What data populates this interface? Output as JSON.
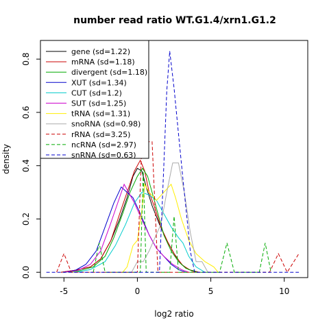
{
  "chart_data": {
    "type": "line",
    "title": "number read ratio WT.G1.4/xrn1.G1.2",
    "xlabel": "log2 ratio",
    "ylabel": "density",
    "xlim": [
      -6.6,
      11.6
    ],
    "ylim": [
      -0.02,
      0.87
    ],
    "xticks": [
      -5,
      0,
      5,
      10
    ],
    "xtick_labels": [
      "-5",
      "0",
      "5",
      "10"
    ],
    "yticks": [
      0.0,
      0.2,
      0.4,
      0.6,
      0.8
    ],
    "ytick_labels": [
      "0.0",
      "0.2",
      "0.4",
      "0.6",
      "0.8"
    ],
    "grid": false,
    "legend_position": "top-left",
    "series": [
      {
        "name": "gene (sd=1.22)",
        "color": "#000000",
        "dash": "solid",
        "points": [
          [
            -5.2,
            0.0
          ],
          [
            -4.2,
            0.008
          ],
          [
            -3.2,
            0.02
          ],
          [
            -2.5,
            0.05
          ],
          [
            -1.8,
            0.12
          ],
          [
            -1.2,
            0.2
          ],
          [
            -0.7,
            0.28
          ],
          [
            -0.3,
            0.36
          ],
          [
            0.0,
            0.39
          ],
          [
            0.3,
            0.38
          ],
          [
            0.6,
            0.32
          ],
          [
            1.0,
            0.25
          ],
          [
            1.5,
            0.18
          ],
          [
            2.0,
            0.12
          ],
          [
            2.5,
            0.07
          ],
          [
            3.0,
            0.03
          ],
          [
            3.5,
            0.01
          ],
          [
            4.2,
            0.0
          ]
        ]
      },
      {
        "name": "mRNA (sd=1.18)",
        "color": "#cc0000",
        "dash": "solid",
        "points": [
          [
            -5.2,
            0.0
          ],
          [
            -4.2,
            0.008
          ],
          [
            -3.2,
            0.02
          ],
          [
            -2.5,
            0.05
          ],
          [
            -1.8,
            0.12
          ],
          [
            -1.2,
            0.22
          ],
          [
            -0.7,
            0.3
          ],
          [
            -0.2,
            0.38
          ],
          [
            0.2,
            0.42
          ],
          [
            0.5,
            0.38
          ],
          [
            0.8,
            0.3
          ],
          [
            1.2,
            0.24
          ],
          [
            1.6,
            0.17
          ],
          [
            2.1,
            0.11
          ],
          [
            2.6,
            0.06
          ],
          [
            3.1,
            0.025
          ],
          [
            3.7,
            0.005
          ],
          [
            4.2,
            0.0
          ]
        ]
      },
      {
        "name": "divergent (sd=1.18)",
        "color": "#00aa00",
        "dash": "solid",
        "points": [
          [
            -5.0,
            0.0
          ],
          [
            -4.0,
            0.005
          ],
          [
            -3.0,
            0.02
          ],
          [
            -2.2,
            0.06
          ],
          [
            -1.6,
            0.13
          ],
          [
            -1.0,
            0.22
          ],
          [
            -0.5,
            0.3
          ],
          [
            0.0,
            0.36
          ],
          [
            0.35,
            0.39
          ],
          [
            0.7,
            0.36
          ],
          [
            1.0,
            0.3
          ],
          [
            1.4,
            0.22
          ],
          [
            1.8,
            0.14
          ],
          [
            2.3,
            0.08
          ],
          [
            2.8,
            0.04
          ],
          [
            3.3,
            0.015
          ],
          [
            4.0,
            0.0
          ]
        ]
      },
      {
        "name": "XUT (sd=1.34)",
        "color": "#0000cc",
        "dash": "solid",
        "points": [
          [
            -5.0,
            0.0
          ],
          [
            -4.2,
            0.008
          ],
          [
            -3.5,
            0.03
          ],
          [
            -2.8,
            0.08
          ],
          [
            -2.2,
            0.17
          ],
          [
            -1.6,
            0.26
          ],
          [
            -1.1,
            0.32
          ],
          [
            -0.7,
            0.3
          ],
          [
            -0.3,
            0.28
          ],
          [
            0.2,
            0.22
          ],
          [
            0.8,
            0.14
          ],
          [
            1.3,
            0.09
          ],
          [
            1.8,
            0.06
          ],
          [
            2.3,
            0.03
          ],
          [
            2.8,
            0.01
          ],
          [
            3.3,
            0.0
          ]
        ]
      },
      {
        "name": "CUT (sd=1.2)",
        "color": "#00cccc",
        "dash": "solid",
        "points": [
          [
            -4.2,
            0.0
          ],
          [
            -3.2,
            0.01
          ],
          [
            -2.2,
            0.04
          ],
          [
            -1.5,
            0.1
          ],
          [
            -0.8,
            0.18
          ],
          [
            -0.2,
            0.26
          ],
          [
            0.3,
            0.3
          ],
          [
            0.8,
            0.29
          ],
          [
            1.3,
            0.27
          ],
          [
            1.8,
            0.22
          ],
          [
            2.3,
            0.17
          ],
          [
            2.8,
            0.13
          ],
          [
            3.1,
            0.11
          ],
          [
            3.5,
            0.06
          ],
          [
            4.0,
            0.02
          ],
          [
            4.6,
            0.0
          ]
        ]
      },
      {
        "name": "SUT (sd=1.25)",
        "color": "#cc00cc",
        "dash": "solid",
        "points": [
          [
            -5.0,
            0.0
          ],
          [
            -4.0,
            0.008
          ],
          [
            -3.2,
            0.03
          ],
          [
            -2.5,
            0.08
          ],
          [
            -1.9,
            0.17
          ],
          [
            -1.4,
            0.25
          ],
          [
            -0.9,
            0.33
          ],
          [
            -0.6,
            0.3
          ],
          [
            -0.2,
            0.26
          ],
          [
            0.2,
            0.21
          ],
          [
            0.8,
            0.14
          ],
          [
            1.3,
            0.09
          ],
          [
            1.8,
            0.06
          ],
          [
            2.4,
            0.03
          ],
          [
            3.0,
            0.01
          ],
          [
            3.5,
            0.0
          ]
        ]
      },
      {
        "name": "tRNA (sd=1.31)",
        "color": "#ffee00",
        "dash": "solid",
        "points": [
          [
            -1.0,
            0.0
          ],
          [
            -0.7,
            0.02
          ],
          [
            -0.3,
            0.1
          ],
          [
            0.0,
            0.12
          ],
          [
            0.3,
            0.23
          ],
          [
            0.5,
            0.33
          ],
          [
            0.8,
            0.3
          ],
          [
            1.3,
            0.27
          ],
          [
            1.8,
            0.3
          ],
          [
            2.3,
            0.33
          ],
          [
            2.6,
            0.28
          ],
          [
            3.0,
            0.2
          ],
          [
            3.5,
            0.12
          ],
          [
            4.0,
            0.07
          ],
          [
            4.6,
            0.04
          ],
          [
            5.2,
            0.02
          ],
          [
            5.5,
            0.0
          ]
        ]
      },
      {
        "name": "snoRNA (sd=0.98)",
        "color": "#aaaaaa",
        "dash": "solid",
        "points": [
          [
            -0.4,
            0.0
          ],
          [
            0.0,
            0.04
          ],
          [
            0.4,
            0.04
          ],
          [
            0.8,
            0.08
          ],
          [
            1.2,
            0.13
          ],
          [
            1.6,
            0.18
          ],
          [
            2.0,
            0.3
          ],
          [
            2.4,
            0.41
          ],
          [
            2.8,
            0.41
          ],
          [
            3.2,
            0.3
          ],
          [
            3.6,
            0.15
          ],
          [
            4.0,
            0.04
          ],
          [
            4.4,
            0.04
          ],
          [
            4.8,
            0.0
          ]
        ]
      },
      {
        "name": "rRNA (sd=3.25)",
        "color": "#cc0000",
        "dash": "dashed",
        "points": [
          [
            -5.5,
            0.0
          ],
          [
            -5.0,
            0.07
          ],
          [
            -4.5,
            0.0
          ],
          [
            0.0,
            0.0
          ],
          [
            0.3,
            0.49
          ],
          [
            1.0,
            0.49
          ],
          [
            1.4,
            0.0
          ],
          [
            9.0,
            0.0
          ],
          [
            9.6,
            0.07
          ],
          [
            10.2,
            0.0
          ],
          [
            11.0,
            0.07
          ]
        ]
      },
      {
        "name": "ncRNA (sd=2.97)",
        "color": "#00aa00",
        "dash": "dashed",
        "points": [
          [
            -3.0,
            0.0
          ],
          [
            -2.6,
            0.11
          ],
          [
            -2.2,
            0.0
          ],
          [
            0.2,
            0.0
          ],
          [
            0.4,
            0.38
          ],
          [
            0.6,
            0.0
          ],
          [
            2.2,
            0.0
          ],
          [
            2.5,
            0.21
          ],
          [
            2.8,
            0.0
          ],
          [
            5.6,
            0.0
          ],
          [
            6.1,
            0.11
          ],
          [
            6.6,
            0.0
          ],
          [
            8.3,
            0.0
          ],
          [
            8.7,
            0.11
          ],
          [
            9.1,
            0.0
          ]
        ]
      },
      {
        "name": "snRNA (sd=0.63)",
        "color": "#0000cc",
        "dash": "dashed",
        "points": [
          [
            -6.2,
            0.0
          ],
          [
            1.5,
            0.0
          ],
          [
            1.8,
            0.4
          ],
          [
            2.0,
            0.68
          ],
          [
            2.2,
            0.83
          ],
          [
            2.5,
            0.69
          ],
          [
            2.8,
            0.52
          ],
          [
            3.1,
            0.35
          ],
          [
            3.4,
            0.19
          ],
          [
            3.6,
            0.08
          ],
          [
            3.9,
            0.0
          ],
          [
            11.0,
            0.0
          ]
        ]
      }
    ]
  }
}
